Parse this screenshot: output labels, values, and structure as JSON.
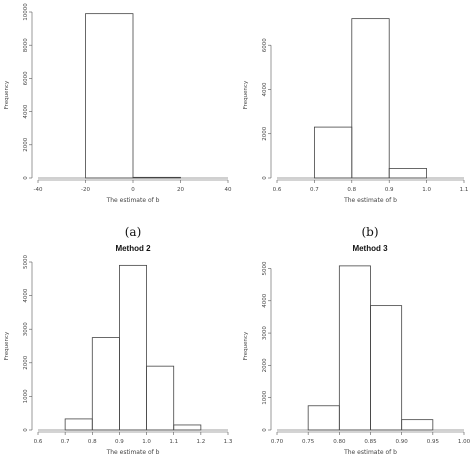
{
  "chart_data": [
    {
      "type": "bar",
      "title": "",
      "caption": "(a)",
      "xlabel": "The estimate of b",
      "ylabel": "Frequency",
      "bins": [
        [
          -20,
          0
        ],
        [
          0,
          20
        ]
      ],
      "values": [
        9900,
        40
      ],
      "xlim": [
        -40,
        40
      ],
      "ylim": [
        0,
        10000
      ],
      "xticks": [
        "-40",
        "-20",
        "0",
        "20",
        "40"
      ],
      "yticks": [
        "0",
        "2000",
        "4000",
        "6000",
        "8000",
        "10000"
      ],
      "ytick_values": [
        0,
        2000,
        4000,
        6000,
        8000,
        10000
      ],
      "grid": false
    },
    {
      "type": "bar",
      "title": "",
      "caption": "(b)",
      "xlabel": "The estimate of b",
      "ylabel": "Frequency",
      "bins": [
        [
          0.7,
          0.8
        ],
        [
          0.8,
          0.9
        ],
        [
          0.9,
          1.0
        ]
      ],
      "values": [
        2300,
        7200,
        430
      ],
      "xlim": [
        0.6,
        1.1
      ],
      "ylim": [
        0,
        7500
      ],
      "xticks": [
        "0.6",
        "0.7",
        "0.8",
        "0.9",
        "1.0",
        "1.1"
      ],
      "yticks": [
        "0",
        "2000",
        "4000",
        "6000"
      ],
      "ytick_values": [
        0,
        2000,
        4000,
        6000
      ],
      "grid": false
    },
    {
      "type": "bar",
      "title": "Method 2",
      "caption": "",
      "xlabel": "The estimate of b",
      "ylabel": "Frequency",
      "bins": [
        [
          0.7,
          0.8
        ],
        [
          0.8,
          0.9
        ],
        [
          0.9,
          1.0
        ],
        [
          1.0,
          1.1
        ],
        [
          1.1,
          1.2
        ]
      ],
      "values": [
        330,
        2750,
        4900,
        1900,
        150
      ],
      "xlim": [
        0.6,
        1.3
      ],
      "ylim": [
        0,
        5000
      ],
      "xticks": [
        "0.6",
        "0.7",
        "0.8",
        "0.9",
        "1.0",
        "1.1",
        "1.2",
        "1.3"
      ],
      "yticks": [
        "0",
        "1000",
        "2000",
        "3000",
        "4000",
        "5000"
      ],
      "ytick_values": [
        0,
        1000,
        2000,
        3000,
        4000,
        5000
      ],
      "grid": false
    },
    {
      "type": "bar",
      "title": "Method 3",
      "caption": "",
      "xlabel": "The estimate of b",
      "ylabel": "Frequency",
      "bins": [
        [
          0.75,
          0.8
        ],
        [
          0.8,
          0.85
        ],
        [
          0.85,
          0.9
        ],
        [
          0.9,
          0.95
        ]
      ],
      "values": [
        750,
        5080,
        3850,
        320
      ],
      "xlim": [
        0.7,
        1.0
      ],
      "ylim": [
        0,
        5200
      ],
      "xticks": [
        "0.70",
        "0.75",
        "0.80",
        "0.85",
        "0.90",
        "0.95",
        "1.00"
      ],
      "yticks": [
        "0",
        "1000",
        "2000",
        "3000",
        "4000",
        "5000"
      ],
      "ytick_values": [
        0,
        1000,
        2000,
        3000,
        4000,
        5000
      ],
      "grid": false
    }
  ]
}
